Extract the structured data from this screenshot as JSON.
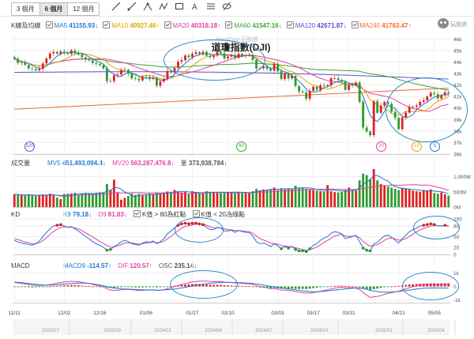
{
  "toolbar": {
    "periods": [
      "3 個月",
      "6 個月",
      "12 個月"
    ],
    "active_period": "6 個月",
    "tools": [
      "line",
      "ray",
      "node",
      "nodes",
      "box",
      "text",
      "fibonacci",
      "hide"
    ]
  },
  "logo_text": "玩股網",
  "price_panel": {
    "title": "K線及均線",
    "watermark": "WantGoo 玩股網",
    "symbol": "道瓊指數(DJI)",
    "ma": [
      {
        "label": "MA5",
        "value": "41155.93",
        "dir": "↓",
        "color": "#1f77d0"
      },
      {
        "label": "MA10",
        "value": "40927.46",
        "dir": "↑",
        "color": "#e0a800"
      },
      {
        "label": "MA20",
        "value": "40318.18",
        "dir": "↑",
        "color": "#e040a0"
      },
      {
        "label": "MA60",
        "value": "41547.16",
        "dir": "↓",
        "color": "#3aa335"
      },
      {
        "label": "MA120",
        "value": "42671.87",
        "dir": "↓",
        "color": "#5a4fcf"
      },
      {
        "label": "MA240",
        "value": "41763.47",
        "dir": "↑",
        "color": "#f06a2a"
      }
    ],
    "y_ticks": [
      "46k",
      "45k",
      "44k",
      "43k",
      "42k",
      "41k",
      "40k",
      "39k",
      "38k",
      "37k",
      "36k"
    ],
    "badges": [
      {
        "text": "120",
        "color": "#5a4fcf"
      },
      {
        "text": "60",
        "color": "#3aa335"
      },
      {
        "text": "20",
        "color": "#e040a0"
      },
      {
        "text": "10",
        "color": "#e0a800"
      },
      {
        "text": "5",
        "color": "#1f77d0"
      }
    ]
  },
  "volume_panel": {
    "title": "成交量",
    "mv5_label": "MV5",
    "mv5": "451,493,094.4",
    "mv5_dir": "↓",
    "mv20_label": "MV20",
    "mv20": "563,287,476.8",
    "mv20_dir": "↓",
    "vol_label": "量",
    "vol": "373,938,784",
    "vol_dir": "↓",
    "y_ticks": [
      "1,000M",
      "500M",
      "0M"
    ]
  },
  "kd_panel": {
    "title": "KD",
    "k_label": "K9",
    "k": "79.18",
    "k_dir": "↓",
    "d_label": "D9",
    "d": "81.83",
    "d_dir": "↓",
    "rule_high": "K值 > 80為紅點",
    "rule_low": "K值 < 20為綠點",
    "y_ticks": [
      "100",
      "80",
      "50",
      "20",
      "0"
    ]
  },
  "macd_panel": {
    "title": "MACD",
    "macd_label": "MACD9",
    "macd": "-114.57",
    "macd_dir": "↑",
    "dif_label": "DIF",
    "dif": "120.57",
    "dif_dir": "↑",
    "osc_label": "OSC",
    "osc": "235.14",
    "osc_dir": "↓",
    "y_ticks": [
      "1k",
      "0",
      "-1k"
    ]
  },
  "x_axis": {
    "date_ticks": [
      "11/11",
      "12/02",
      "12/16",
      "01/06",
      "01/27",
      "02/10",
      "03/03",
      "03/17",
      "03/31",
      "04/21",
      "05/05"
    ],
    "month_ticks": [
      "2023/07",
      "2023/10",
      "2024/01",
      "2024/04",
      "2024/07",
      "2024/10",
      "2025/01",
      "2025/04"
    ]
  },
  "colors": {
    "up": "#e02020",
    "down": "#2e9a2e",
    "grid": "#eeeeee",
    "circle": "#2a8ac7"
  },
  "chart_data": {
    "type": "candlestick",
    "title": "道瓊指數(DJI)",
    "x": [
      "11/11",
      "11/12",
      "11/13",
      "11/14",
      "11/15",
      "11/18",
      "11/19",
      "11/20",
      "11/21",
      "11/22",
      "11/25",
      "11/26",
      "11/27",
      "11/29",
      "12/02",
      "12/03",
      "12/04",
      "12/05",
      "12/06",
      "12/09",
      "12/10",
      "12/11",
      "12/12",
      "12/13",
      "12/16",
      "12/17",
      "12/18",
      "12/19",
      "12/20",
      "12/23",
      "12/24",
      "12/26",
      "12/27",
      "12/30",
      "12/31",
      "01/02",
      "01/03",
      "01/06",
      "01/07",
      "01/08",
      "01/10",
      "01/13",
      "01/14",
      "01/15",
      "01/16",
      "01/17",
      "01/21",
      "01/22",
      "01/23",
      "01/24",
      "01/27",
      "01/28",
      "01/29",
      "01/30",
      "01/31",
      "02/03",
      "02/04",
      "02/05",
      "02/06",
      "02/07",
      "02/10",
      "02/11",
      "02/12",
      "02/13",
      "02/14",
      "02/18",
      "02/19",
      "02/20",
      "02/21",
      "02/24",
      "02/25",
      "02/26",
      "02/27",
      "02/28",
      "03/03",
      "03/04",
      "03/05",
      "03/06",
      "03/07",
      "03/10",
      "03/11",
      "03/12",
      "03/13",
      "03/14",
      "03/17",
      "03/18",
      "03/19",
      "03/20",
      "03/21",
      "03/24",
      "03/25",
      "03/26",
      "03/27",
      "03/28",
      "03/31",
      "04/01",
      "04/02",
      "04/03",
      "04/04",
      "04/07",
      "04/08",
      "04/09",
      "04/10",
      "04/11",
      "04/14",
      "04/15",
      "04/16",
      "04/17",
      "04/21",
      "04/22",
      "04/23",
      "04/24",
      "04/25",
      "04/28",
      "04/29",
      "04/30",
      "05/01",
      "05/02",
      "05/05",
      "05/06",
      "05/07",
      "05/08",
      "05/09"
    ],
    "close": [
      44290,
      43910,
      43960,
      43750,
      43440,
      43390,
      43270,
      43400,
      43870,
      44300,
      44740,
      44860,
      44720,
      44910,
      44780,
      44700,
      45010,
      44770,
      44640,
      44400,
      44250,
      44150,
      43910,
      43830,
      43720,
      43450,
      42330,
      42340,
      42840,
      42910,
      43300,
      43330,
      42990,
      42570,
      42540,
      42400,
      42730,
      42710,
      42530,
      42640,
      41940,
      42300,
      42520,
      43220,
      43150,
      43480,
      44030,
      44160,
      44560,
      44420,
      44710,
      44850,
      44710,
      44880,
      44540,
      44420,
      44550,
      44870,
      44750,
      44300,
      44470,
      44590,
      44370,
      44710,
      44550,
      44560,
      44630,
      44180,
      43430,
      43460,
      43620,
      43430,
      43240,
      43840,
      43190,
      42520,
      43010,
      42580,
      42800,
      41910,
      41430,
      41350,
      40810,
      41490,
      41840,
      41580,
      41960,
      41950,
      41980,
      42580,
      42590,
      42450,
      42300,
      41580,
      42000,
      41990,
      42220,
      40540,
      38310,
      37960,
      37640,
      40600,
      39590,
      40210,
      40520,
      40370,
      39670,
      39140,
      38170,
      39190,
      39600,
      40090,
      40110,
      40230,
      40530,
      40670,
      41000,
      41320,
      41220,
      40830,
      41110,
      41370,
      41250
    ],
    "volume": [
      420,
      400,
      390,
      380,
      420,
      380,
      360,
      380,
      420,
      400,
      440,
      380,
      310,
      260,
      430,
      440,
      450,
      470,
      400,
      450,
      470,
      450,
      440,
      460,
      480,
      490,
      760,
      560,
      900,
      470,
      240,
      300,
      360,
      440,
      400,
      430,
      380,
      400,
      440,
      430,
      480,
      420,
      460,
      510,
      500,
      560,
      520,
      480,
      500,
      420,
      520,
      480,
      450,
      470,
      520,
      500,
      480,
      470,
      460,
      480,
      470,
      480,
      450,
      500,
      460,
      470,
      460,
      520,
      600,
      550,
      580,
      560,
      590,
      640,
      560,
      620,
      580,
      620,
      590,
      700,
      640,
      620,
      600,
      580,
      560,
      540,
      520,
      510,
      720,
      520,
      490,
      480,
      500,
      560,
      640,
      560,
      540,
      880,
      1100,
      1050,
      920,
      1250,
      880,
      760,
      700,
      680,
      640,
      600,
      560,
      620,
      600,
      580,
      540,
      520,
      500,
      560,
      540,
      580,
      460,
      440,
      480,
      420,
      374
    ],
    "k9": [
      40,
      35,
      32,
      30,
      28,
      26,
      30,
      38,
      50,
      62,
      72,
      80,
      82,
      84,
      80,
      76,
      78,
      72,
      66,
      58,
      50,
      44,
      36,
      30,
      26,
      20,
      12,
      14,
      22,
      28,
      36,
      40,
      36,
      30,
      28,
      26,
      32,
      36,
      34,
      38,
      30,
      36,
      44,
      58,
      66,
      74,
      82,
      86,
      88,
      86,
      88,
      88,
      86,
      84,
      76,
      70,
      70,
      76,
      74,
      66,
      66,
      68,
      62,
      68,
      64,
      62,
      62,
      52,
      36,
      30,
      32,
      28,
      22,
      30,
      24,
      16,
      22,
      18,
      22,
      14,
      10,
      10,
      8,
      16,
      26,
      30,
      40,
      46,
      50,
      60,
      64,
      62,
      58,
      44,
      48,
      50,
      54,
      36,
      18,
      12,
      10,
      30,
      34,
      44,
      52,
      54,
      48,
      40,
      32,
      44,
      54,
      64,
      70,
      74,
      80,
      82,
      84,
      86,
      84,
      80,
      80,
      82,
      79.18
    ],
    "d9": [
      45,
      42,
      38,
      35,
      33,
      30,
      30,
      33,
      39,
      47,
      56,
      65,
      71,
      76,
      78,
      77,
      77,
      75,
      72,
      67,
      61,
      55,
      49,
      43,
      37,
      31,
      25,
      21,
      21,
      24,
      28,
      32,
      33,
      32,
      31,
      29,
      30,
      32,
      33,
      35,
      33,
      34,
      37,
      44,
      51,
      59,
      67,
      74,
      79,
      81,
      83,
      85,
      85,
      85,
      82,
      78,
      75,
      75,
      75,
      72,
      70,
      69,
      67,
      67,
      66,
      65,
      64,
      60,
      52,
      45,
      41,
      37,
      32,
      31,
      29,
      25,
      24,
      22,
      22,
      19,
      16,
      14,
      12,
      13,
      17,
      21,
      27,
      34,
      39,
      46,
      52,
      55,
      56,
      52,
      51,
      51,
      52,
      47,
      37,
      29,
      23,
      25,
      28,
      33,
      40,
      45,
      46,
      44,
      40,
      41,
      45,
      51,
      57,
      63,
      69,
      73,
      77,
      80,
      81,
      81,
      81,
      81,
      81.83
    ],
    "osc": [
      -20,
      -30,
      -40,
      -50,
      -60,
      -70,
      -60,
      -50,
      -40,
      -20,
      0,
      20,
      40,
      60,
      80,
      90,
      100,
      90,
      80,
      60,
      40,
      20,
      0,
      -20,
      -40,
      -60,
      -90,
      -110,
      -100,
      -80,
      -60,
      -40,
      -50,
      -60,
      -70,
      -80,
      -70,
      -60,
      -60,
      -50,
      -70,
      -60,
      -40,
      -10,
      20,
      50,
      80,
      110,
      140,
      160,
      180,
      190,
      180,
      170,
      150,
      130,
      120,
      120,
      110,
      90,
      80,
      70,
      50,
      50,
      40,
      30,
      20,
      0,
      -40,
      -70,
      -90,
      -110,
      -130,
      -120,
      -140,
      -170,
      -160,
      -170,
      -160,
      -180,
      -190,
      -190,
      -190,
      -160,
      -120,
      -90,
      -60,
      -30,
      -10,
      20,
      40,
      50,
      50,
      20,
      10,
      0,
      0,
      -60,
      -150,
      -220,
      -280,
      -200,
      -160,
      -110,
      -60,
      -20,
      0,
      20,
      40,
      80,
      110,
      140,
      160,
      180,
      200,
      210,
      220,
      230,
      230,
      225,
      230,
      240,
      235.14
    ],
    "dif": [
      300,
      260,
      220,
      180,
      140,
      100,
      80,
      70,
      80,
      100,
      140,
      190,
      240,
      290,
      330,
      350,
      380,
      370,
      350,
      310,
      260,
      210,
      150,
      90,
      30,
      -40,
      -170,
      -270,
      -300,
      -290,
      -250,
      -210,
      -220,
      -240,
      -270,
      -300,
      -290,
      -270,
      -270,
      -250,
      -290,
      -280,
      -240,
      -170,
      -100,
      -20,
      60,
      140,
      220,
      280,
      330,
      370,
      390,
      400,
      390,
      370,
      360,
      360,
      350,
      320,
      300,
      290,
      260,
      250,
      230,
      210,
      190,
      150,
      70,
      0,
      -50,
      -100,
      -150,
      -160,
      -200,
      -270,
      -280,
      -310,
      -320,
      -370,
      -420,
      -460,
      -500,
      -490,
      -450,
      -410,
      -360,
      -300,
      -250,
      -180,
      -120,
      -80,
      -50,
      -80,
      -90,
      -100,
      -110,
      -230,
      -450,
      -650,
      -820,
      -760,
      -740,
      -680,
      -590,
      -510,
      -460,
      -400,
      -350,
      -260,
      -180,
      -90,
      -20,
      50,
      100,
      120,
      130,
      135,
      125,
      115,
      118,
      122,
      120.57
    ],
    "macd9": [
      320,
      300,
      280,
      250,
      220,
      190,
      160,
      130,
      110,
      100,
      100,
      110,
      130,
      150,
      180,
      200,
      220,
      240,
      250,
      250,
      240,
      220,
      190,
      150,
      110,
      60,
      -10,
      -70,
      -120,
      -160,
      -180,
      -190,
      -200,
      -210,
      -220,
      -240,
      -250,
      -260,
      -260,
      -260,
      -270,
      -270,
      -260,
      -240,
      -220,
      -190,
      -150,
      -110,
      -60,
      -20,
      30,
      80,
      130,
      170,
      210,
      240,
      260,
      280,
      290,
      300,
      300,
      300,
      290,
      280,
      270,
      260,
      240,
      220,
      190,
      150,
      110,
      60,
      10,
      -30,
      -70,
      -110,
      -150,
      -190,
      -220,
      -250,
      -290,
      -330,
      -360,
      -380,
      -390,
      -390,
      -380,
      -360,
      -330,
      -300,
      -270,
      -240,
      -210,
      -180,
      -150,
      -130,
      -110,
      -120,
      -160,
      -220,
      -290,
      -340,
      -380,
      -410,
      -420,
      -420,
      -410,
      -390,
      -370,
      -340,
      -310,
      -270,
      -230,
      -190,
      -150,
      -130,
      -115,
      -110,
      -108,
      -110,
      -113,
      -116,
      -114.57
    ],
    "ylim_price": [
      36000,
      46500
    ],
    "ylim_volume": [
      0,
      1300
    ],
    "ylim_kd": [
      0,
      100
    ],
    "ylim_macd": [
      -1200,
      1200
    ]
  }
}
